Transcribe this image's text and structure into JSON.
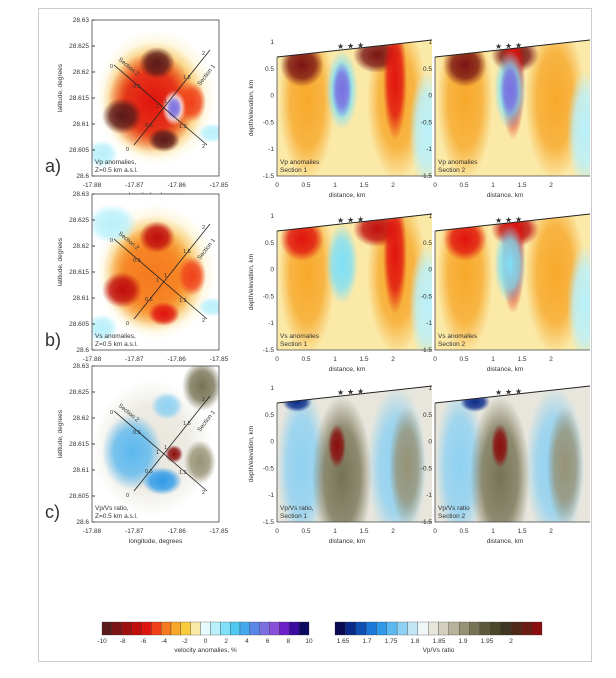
{
  "rows": [
    {
      "letter": "a)",
      "map_label": [
        "Vp anomalies,",
        "Z=0.5 km a.s.l."
      ],
      "sec1_label": [
        "Vp anomalies",
        "Section 1"
      ],
      "sec2_label": [
        "Vp anomalies",
        "Section 2"
      ],
      "scale": "velocity"
    },
    {
      "letter": "b)",
      "map_label": [
        "Vs anomalies,",
        "Z=0.5 km a.s.l."
      ],
      "sec1_label": [
        "Vs anomalies",
        "Section 1"
      ],
      "sec2_label": [
        "Vs anomalies",
        "Section 2"
      ],
      "scale": "velocity"
    },
    {
      "letter": "c)",
      "map_label": [
        "Vp/Vs ratio,",
        "Z=0.5 km a.s.l."
      ],
      "sec1_label": [
        "Vp/Vs ratio,",
        "Section 1"
      ],
      "sec2_label": [
        "Vp/Vs ratio",
        "Section 2"
      ],
      "scale": "ratio"
    }
  ],
  "map_axes": {
    "xlabel": "longitude, degrees",
    "ylabel": "latitude, degrees",
    "xticks": [
      "-17.88",
      "-17.87",
      "-17.86",
      "-17.85"
    ],
    "yticks": [
      "28.6",
      "28.605",
      "28.61",
      "28.615",
      "28.62",
      "28.625",
      "28.63"
    ],
    "section1": "Section 1",
    "section2": "Section 2",
    "sec_marks": [
      "0",
      "0.5",
      "1",
      "1.5",
      "2"
    ]
  },
  "section_axes": {
    "xlabel": "distance, km",
    "ylabel": "depth/elevation, km",
    "xticks": [
      "0",
      "0.5",
      "1",
      "1.5",
      "2"
    ],
    "yticks": [
      "1",
      "0.5",
      "0",
      "-0.5",
      "-1",
      "-1.5"
    ]
  },
  "colorbars": [
    {
      "label": "velocity anomalies, %",
      "ticks": [
        "-10",
        "-8",
        "-6",
        "-4",
        "-2",
        "0",
        "2",
        "4",
        "6",
        "8",
        "10"
      ],
      "colors": [
        "#5a1a1a",
        "#7a1515",
        "#9c1010",
        "#c00d0d",
        "#e0140f",
        "#f0401a",
        "#f57a20",
        "#f7a82a",
        "#f9cc40",
        "#fbe9a8",
        "#e6fbfd",
        "#b9f0fb",
        "#7fe0f7",
        "#4fc8f2",
        "#45a8ef",
        "#5a86ea",
        "#7a6ee0",
        "#8a4fd8",
        "#6a1fc8",
        "#3a0ca0",
        "#0a0a60"
      ]
    },
    {
      "label": "Vp/Vs ratio",
      "ticks": [
        "1.65",
        "1.7",
        "1.75",
        "1.8",
        "1.85",
        "1.9",
        "1.95",
        "2"
      ],
      "colors": [
        "#0a0a50",
        "#0a2a8a",
        "#1050b5",
        "#1a78d8",
        "#2e9ae8",
        "#5cb8ef",
        "#8fd1f2",
        "#c2e6f5",
        "#eef6f8",
        "#e8e6dc",
        "#d2cfbd",
        "#b7b39a",
        "#979275",
        "#777355",
        "#5d5a3c",
        "#4a472a",
        "#3e3620",
        "#502a18",
        "#6a1c12",
        "#8a0e0e"
      ]
    }
  ]
}
